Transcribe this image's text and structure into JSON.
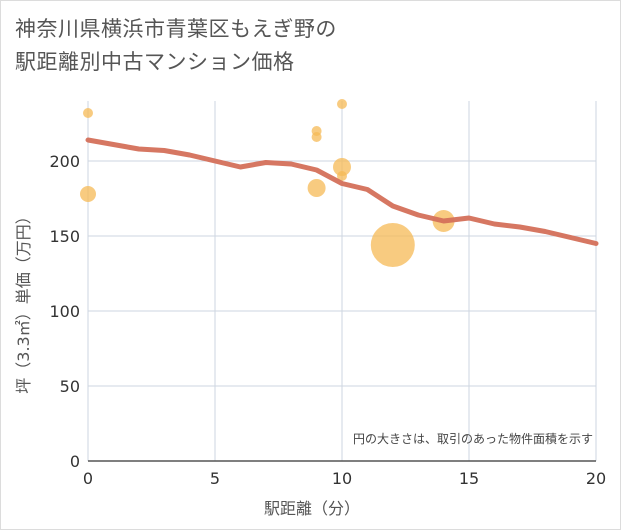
{
  "title_line1": "神奈川県横浜市青葉区もえぎ野の",
  "title_line2": "駅距離別中古マンション価格",
  "chart_data": {
    "type": "scatter",
    "title": "神奈川県横浜市青葉区もえぎ野の駅距離別中古マンション価格",
    "xlabel": "駅距離（分）",
    "ylabel": "坪（3.3㎡）単価（万円）",
    "xlim": [
      0,
      20
    ],
    "ylim": [
      0,
      240
    ],
    "x_ticks": [
      0,
      5,
      10,
      15,
      20
    ],
    "y_ticks": [
      0,
      50,
      100,
      150,
      200
    ],
    "grid": true,
    "note": "円の大きさは、取引のあった物件面積を示す",
    "bubble_color": "#f5b955",
    "line_color": "#d4705a",
    "scatter": [
      {
        "x": 0,
        "y": 232,
        "r": 5
      },
      {
        "x": 0,
        "y": 178,
        "r": 8
      },
      {
        "x": 9,
        "y": 220,
        "r": 5
      },
      {
        "x": 9,
        "y": 216,
        "r": 5
      },
      {
        "x": 9,
        "y": 182,
        "r": 9
      },
      {
        "x": 10,
        "y": 238,
        "r": 5
      },
      {
        "x": 10,
        "y": 196,
        "r": 9
      },
      {
        "x": 10,
        "y": 190,
        "r": 5
      },
      {
        "x": 12,
        "y": 144,
        "r": 22
      },
      {
        "x": 14,
        "y": 160,
        "r": 11
      }
    ],
    "trend": {
      "name": "trend",
      "x": [
        0,
        1,
        2,
        3,
        4,
        5,
        6,
        7,
        8,
        9,
        10,
        11,
        12,
        13,
        14,
        15,
        16,
        17,
        18,
        19,
        20
      ],
      "y": [
        214,
        211,
        208,
        207,
        204,
        200,
        196,
        199,
        198,
        194,
        185,
        181,
        170,
        164,
        160,
        162,
        158,
        156,
        153,
        149,
        145
      ]
    }
  }
}
